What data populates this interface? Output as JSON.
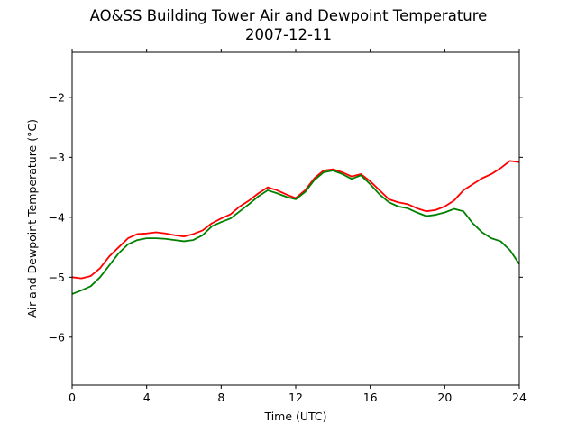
{
  "chart_data": {
    "type": "line",
    "title": [
      "AO&SS Building Tower Air and Dewpoint Temperature",
      "2007-12-11"
    ],
    "xlabel": "Time (UTC)",
    "ylabel": "Air and Dewpoint Temperature (°C)",
    "xlim": [
      0,
      24
    ],
    "ylim": [
      -6.8,
      -1.25
    ],
    "xticks": [
      0,
      4,
      8,
      12,
      16,
      20,
      24
    ],
    "yticks": [
      -6,
      -5,
      -4,
      -3,
      -2
    ],
    "grid": false,
    "series": [
      {
        "color": "#ff0000",
        "x": [
          0,
          0.5,
          1,
          1.5,
          2,
          2.5,
          3,
          3.5,
          4,
          4.5,
          5,
          5.5,
          6,
          6.5,
          7,
          7.5,
          8,
          8.5,
          9,
          9.5,
          10,
          10.5,
          11,
          11.5,
          12,
          12.5,
          13,
          13.5,
          14,
          14.5,
          15,
          15.5,
          16,
          16.5,
          17,
          17.5,
          18,
          18.5,
          19,
          19.5,
          20,
          20.5,
          21,
          21.5,
          22,
          22.5,
          23,
          23.5,
          24
        ],
        "y": [
          -5.0,
          -5.02,
          -4.98,
          -4.85,
          -4.65,
          -4.5,
          -4.35,
          -4.28,
          -4.27,
          -4.25,
          -4.27,
          -4.3,
          -4.32,
          -4.28,
          -4.22,
          -4.1,
          -4.02,
          -3.95,
          -3.82,
          -3.72,
          -3.6,
          -3.5,
          -3.55,
          -3.62,
          -3.68,
          -3.55,
          -3.35,
          -3.22,
          -3.2,
          -3.25,
          -3.32,
          -3.28,
          -3.4,
          -3.55,
          -3.7,
          -3.75,
          -3.78,
          -3.85,
          -3.9,
          -3.88,
          -3.82,
          -3.72,
          -3.55,
          -3.45,
          -3.35,
          -3.28,
          -3.18,
          -3.06,
          -3.08
        ]
      },
      {
        "color": "#008000",
        "x": [
          0,
          0.5,
          1,
          1.5,
          2,
          2.5,
          3,
          3.5,
          4,
          4.5,
          5,
          5.5,
          6,
          6.5,
          7,
          7.5,
          8,
          8.5,
          9,
          9.5,
          10,
          10.5,
          11,
          11.5,
          12,
          12.5,
          13,
          13.5,
          14,
          14.5,
          15,
          15.5,
          16,
          16.5,
          17,
          17.5,
          18,
          18.5,
          19,
          19.5,
          20,
          20.5,
          21,
          21.5,
          22,
          22.5,
          23,
          23.5,
          24
        ],
        "y": [
          -5.28,
          -5.22,
          -5.15,
          -5.0,
          -4.8,
          -4.6,
          -4.45,
          -4.38,
          -4.35,
          -4.35,
          -4.36,
          -4.38,
          -4.4,
          -4.38,
          -4.3,
          -4.15,
          -4.08,
          -4.02,
          -3.9,
          -3.78,
          -3.65,
          -3.55,
          -3.6,
          -3.66,
          -3.7,
          -3.58,
          -3.38,
          -3.25,
          -3.22,
          -3.28,
          -3.36,
          -3.3,
          -3.45,
          -3.62,
          -3.75,
          -3.82,
          -3.85,
          -3.92,
          -3.98,
          -3.96,
          -3.92,
          -3.86,
          -3.9,
          -4.1,
          -4.25,
          -4.35,
          -4.4,
          -4.55,
          -4.78
        ]
      }
    ]
  }
}
